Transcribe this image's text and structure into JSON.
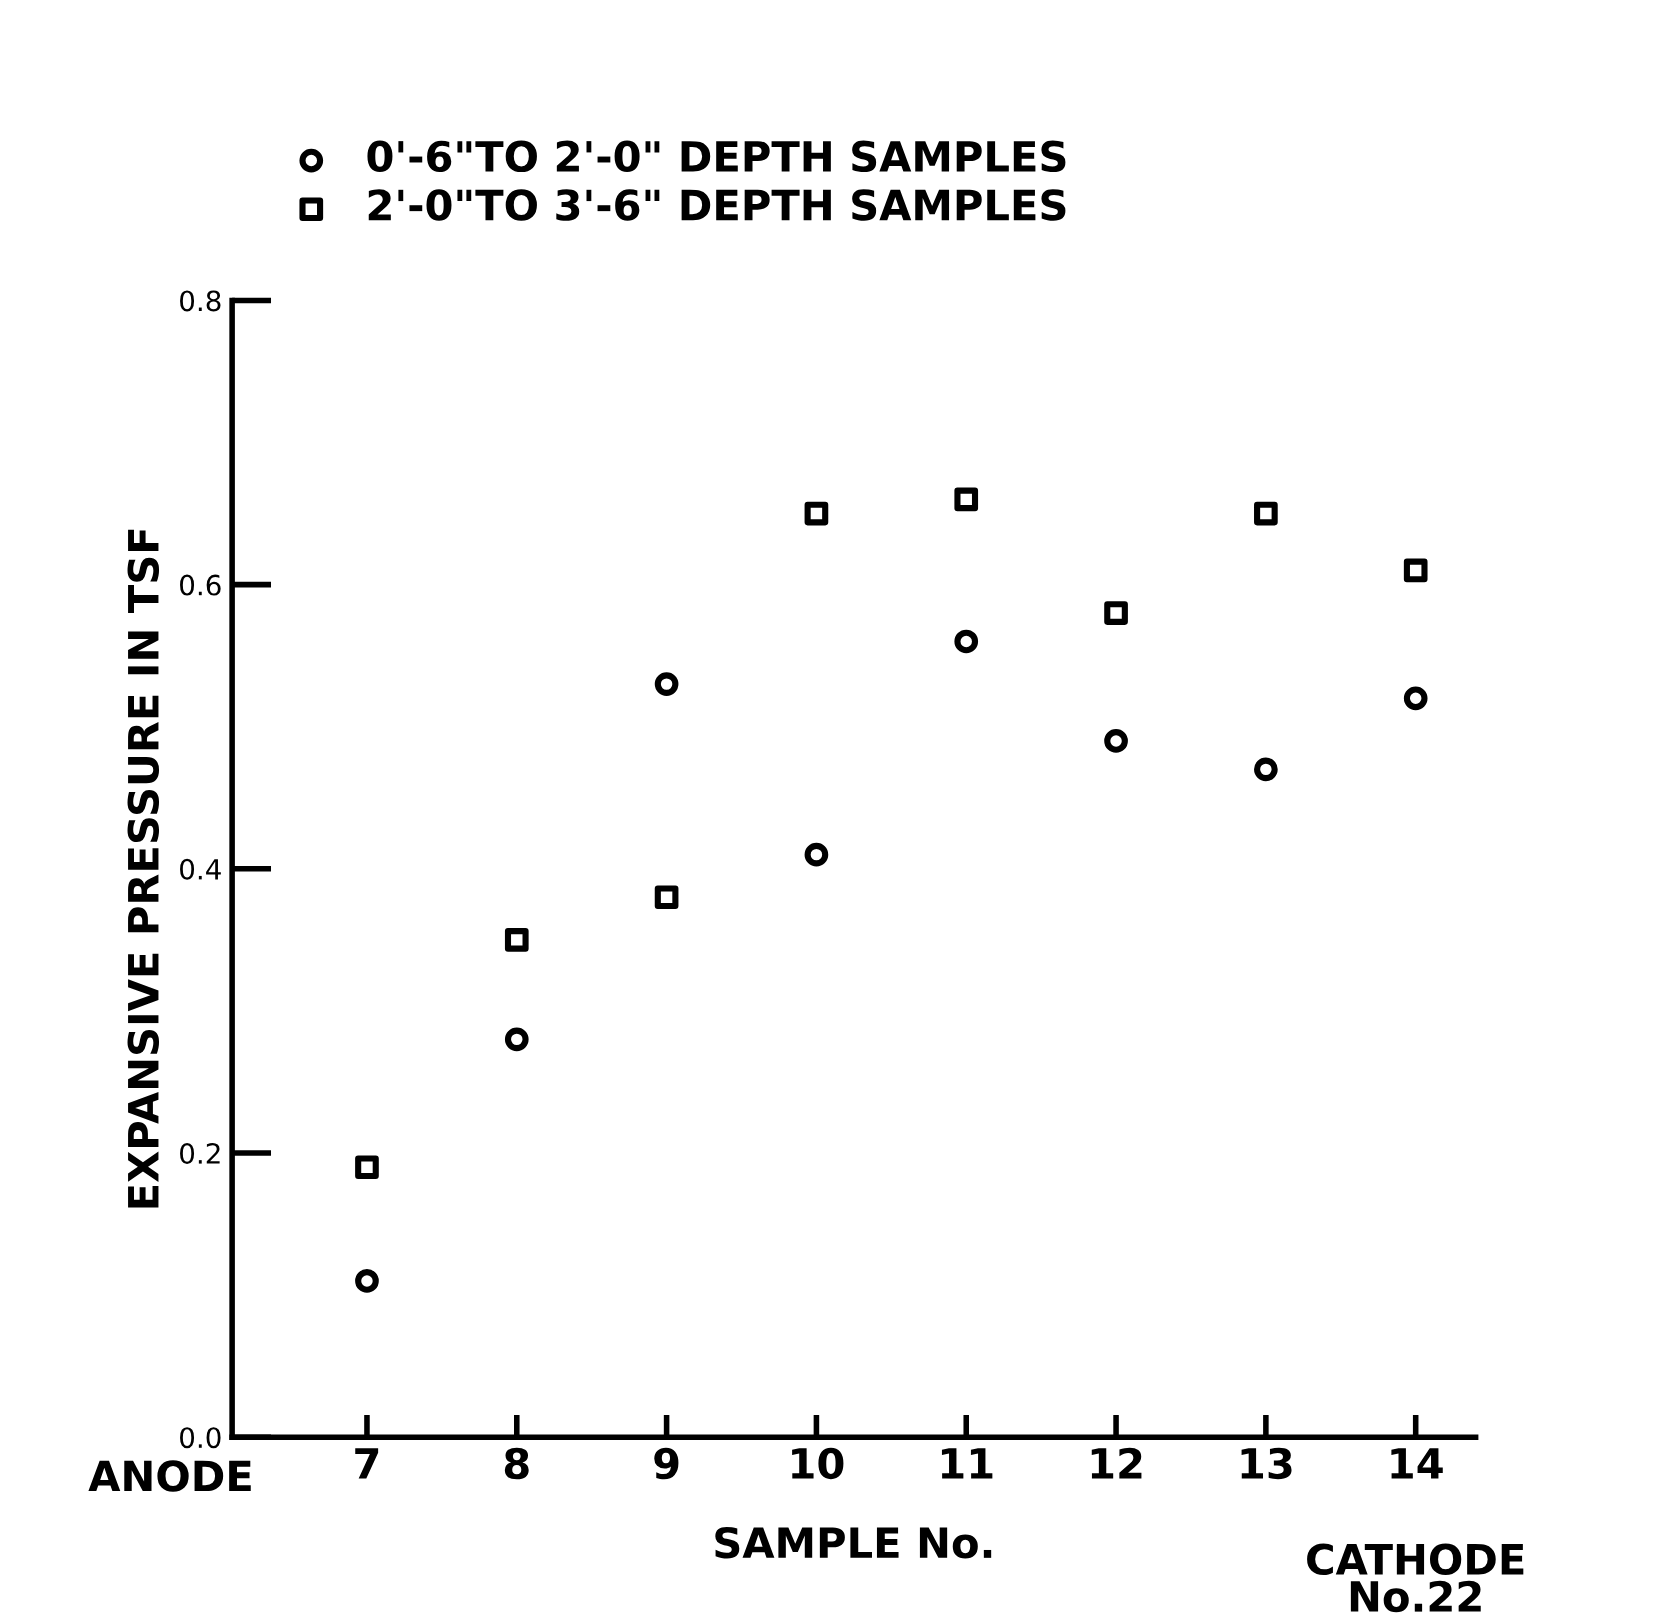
{
  "chart_data": {
    "type": "scatter",
    "xlabel": "SAMPLE No.",
    "ylabel": "EXPANSIVE PRESSURE IN TSF",
    "categories": [
      "7",
      "8",
      "9",
      "10",
      "11",
      "12",
      "13",
      "14"
    ],
    "series": [
      {
        "name": "0'-6\"TO 2'-0\" DEPTH SAMPLES",
        "color": "#000000",
        "marker": "circle",
        "values": [
          0.11,
          0.28,
          0.53,
          0.41,
          0.56,
          0.49,
          0.47,
          0.52
        ]
      },
      {
        "name": "2'-0\"TO 3'-6\" DEPTH SAMPLES",
        "color": "#000000",
        "marker": "square",
        "values": [
          0.19,
          0.35,
          0.38,
          0.65,
          0.66,
          0.58,
          0.65,
          0.61
        ]
      }
    ],
    "ylim": [
      0,
      0.8
    ],
    "yticks": [
      {
        "value": 0,
        "label": "0.0"
      },
      0.2,
      0.4,
      0.6,
      0.8
    ],
    "annotations": [
      "ANODE",
      "CATHODE\nNo.22"
    ],
    "legend": "top",
    "grid": false
  }
}
